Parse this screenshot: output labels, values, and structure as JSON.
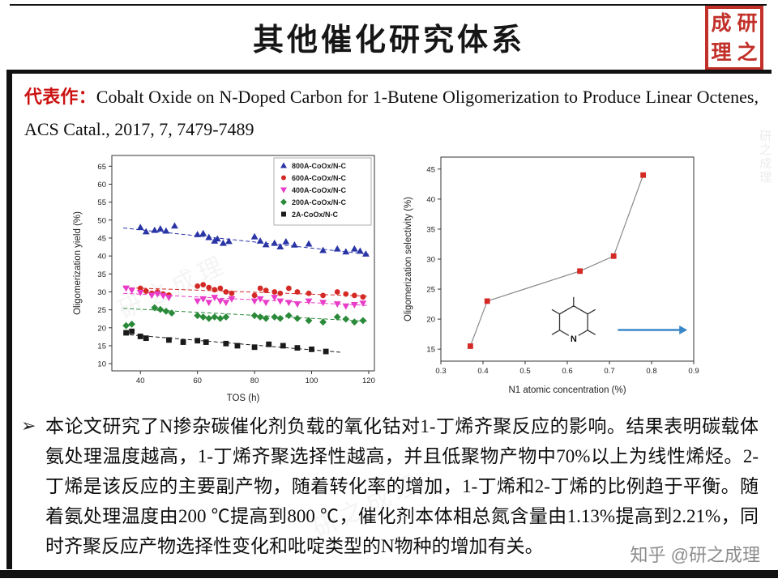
{
  "slide": {
    "title": "其他催化研究体系",
    "seal": {
      "chars": [
        "研",
        "之",
        "成",
        "理"
      ]
    },
    "citation": {
      "label": "代表作：",
      "text": "Cobalt Oxide on N-Doped Carbon for 1-Butene Oligomerization to Produce Linear Octenes, ACS Catal., 2017, 7, 7479-7489"
    },
    "bullet": {
      "marker": "➢",
      "text": "本论文研究了N掺杂碳催化剂负载的氧化钴对1-丁烯齐聚反应的影响。结果表明碳载体氨处理温度越高，1-丁烯齐聚选择性越高，并且低聚物产物中70%以上为线性烯烃。2-丁烯是该反应的主要副产物，随着转化率的增加，1-丁烯和2-丁烯的比例趋于平衡。随着氨处理温度由200 ℃提高到800 ℃，催化剂本体相总氮含量由1.13%提高到2.21%，同时齐聚反应产物选择性变化和吡啶类型的N物种的增加有关。"
    },
    "watermark": "知乎 @研之成理",
    "bg_watermark": "研之成理",
    "colors": {
      "accent_red": "#cc1111",
      "seal_red": "#c2302a",
      "arrow_blue": "#3a87c8"
    }
  },
  "chart_data": [
    {
      "type": "scatter",
      "xlabel": "TOS (h)",
      "ylabel": "Oligomerization yield (%)",
      "xlim": [
        30,
        122
      ],
      "ylim": [
        8,
        68
      ],
      "xticks": [
        40,
        60,
        80,
        100,
        120
      ],
      "yticks": [
        10,
        15,
        20,
        25,
        30,
        35,
        40,
        45,
        50,
        55,
        60,
        65
      ],
      "legend": true,
      "legend_position": "top-right",
      "series": [
        {
          "name": "800A-CoOx/N-C",
          "color": "#2a35a5",
          "marker": "triangle-up",
          "trend": [
            [
              34,
              47.8
            ],
            [
              120,
              40.5
            ]
          ],
          "points": [
            [
              40,
              48
            ],
            [
              42,
              46.8
            ],
            [
              45,
              47.2
            ],
            [
              47,
              47.6
            ],
            [
              49,
              47
            ],
            [
              52,
              48.4
            ],
            [
              60,
              46
            ],
            [
              62,
              46.3
            ],
            [
              64,
              45.2
            ],
            [
              66,
              44.2
            ],
            [
              67,
              44.8
            ],
            [
              69,
              43.6
            ],
            [
              71,
              44.1
            ],
            [
              80,
              45.4
            ],
            [
              82,
              44.2
            ],
            [
              84,
              43.2
            ],
            [
              87,
              43.6
            ],
            [
              89,
              42.6
            ],
            [
              91,
              44
            ],
            [
              94,
              43.1
            ],
            [
              99,
              43.4
            ],
            [
              104,
              41.6
            ],
            [
              109,
              42
            ],
            [
              112,
              41.2
            ],
            [
              115,
              42
            ],
            [
              117,
              41.4
            ],
            [
              119,
              40.6
            ]
          ]
        },
        {
          "name": "600A-CoOx/N-C",
          "color": "#d42a25",
          "marker": "circle",
          "trend": [
            [
              34,
              31.2
            ],
            [
              120,
              28.8
            ]
          ],
          "points": [
            [
              40,
              31
            ],
            [
              42,
              30.2
            ],
            [
              44,
              29.6
            ],
            [
              46,
              30
            ],
            [
              48,
              29.4
            ],
            [
              50,
              29.1
            ],
            [
              60,
              31.6
            ],
            [
              62,
              32
            ],
            [
              64,
              31.2
            ],
            [
              66,
              30.6
            ],
            [
              68,
              31
            ],
            [
              70,
              30
            ],
            [
              72,
              29.6
            ],
            [
              80,
              29
            ],
            [
              82,
              31
            ],
            [
              84,
              30.4
            ],
            [
              87,
              30
            ],
            [
              89,
              29.6
            ],
            [
              92,
              31
            ],
            [
              95,
              30
            ],
            [
              99,
              29.6
            ],
            [
              104,
              29
            ],
            [
              109,
              30
            ],
            [
              112,
              29.4
            ],
            [
              115,
              29
            ],
            [
              118,
              28.6
            ]
          ]
        },
        {
          "name": "400A-CoOx/N-C",
          "color": "#e93cc8",
          "marker": "triangle-down",
          "trend": [
            [
              34,
              29.6
            ],
            [
              120,
              26.2
            ]
          ],
          "points": [
            [
              35,
              31
            ],
            [
              37,
              30.4
            ],
            [
              40,
              29.8
            ],
            [
              44,
              29
            ],
            [
              46,
              29.4
            ],
            [
              48,
              28.9
            ],
            [
              50,
              28.4
            ],
            [
              60,
              27.4
            ],
            [
              62,
              28
            ],
            [
              64,
              27
            ],
            [
              66,
              28.4
            ],
            [
              68,
              27.4
            ],
            [
              70,
              27
            ],
            [
              72,
              28
            ],
            [
              80,
              27.4
            ],
            [
              82,
              28
            ],
            [
              84,
              27
            ],
            [
              87,
              28.4
            ],
            [
              89,
              27.4
            ],
            [
              92,
              27
            ],
            [
              95,
              26.6
            ],
            [
              99,
              27.4
            ],
            [
              104,
              27
            ],
            [
              109,
              26.6
            ],
            [
              112,
              26
            ],
            [
              115,
              26.4
            ],
            [
              118,
              26.8
            ]
          ]
        },
        {
          "name": "200A-CoOx/N-C",
          "color": "#2a8a3a",
          "marker": "diamond",
          "trend": [
            [
              34,
              25.4
            ],
            [
              120,
              21.8
            ]
          ],
          "points": [
            [
              35,
              20.6
            ],
            [
              37,
              21
            ],
            [
              45,
              25.6
            ],
            [
              47,
              25.1
            ],
            [
              49,
              24.6
            ],
            [
              51,
              24.1
            ],
            [
              60,
              23.4
            ],
            [
              62,
              23
            ],
            [
              64,
              22.6
            ],
            [
              66,
              23
            ],
            [
              68,
              22.6
            ],
            [
              70,
              23
            ],
            [
              80,
              23.4
            ],
            [
              82,
              23
            ],
            [
              84,
              22.6
            ],
            [
              87,
              23
            ],
            [
              89,
              22.6
            ],
            [
              92,
              23.4
            ],
            [
              95,
              22.6
            ],
            [
              99,
              22
            ],
            [
              104,
              21.6
            ],
            [
              109,
              23
            ],
            [
              112,
              22.4
            ],
            [
              115,
              21.6
            ],
            [
              118,
              22
            ]
          ]
        },
        {
          "name": "2A-CoOx/N-C",
          "color": "#1a1a1a",
          "marker": "square",
          "trend": [
            [
              34,
              18.2
            ],
            [
              110,
              13.2
            ]
          ],
          "points": [
            [
              35,
              18.6
            ],
            [
              37,
              19
            ],
            [
              40,
              17.6
            ],
            [
              42,
              17.1
            ],
            [
              50,
              16.6
            ],
            [
              55,
              16
            ],
            [
              60,
              16.4
            ],
            [
              63,
              16
            ],
            [
              70,
              15.6
            ],
            [
              74,
              15
            ],
            [
              80,
              14.6
            ],
            [
              85,
              15.4
            ],
            [
              90,
              15
            ],
            [
              95,
              14.4
            ],
            [
              100,
              14
            ],
            [
              105,
              13.4
            ]
          ]
        }
      ]
    },
    {
      "type": "scatter-line",
      "xlabel": "N1 atomic concentration (%)",
      "ylabel": "Oligomerization selectivity (%)",
      "xlim": [
        0.3,
        0.9
      ],
      "ylim": [
        13,
        47
      ],
      "xticks": [
        0.3,
        0.4,
        0.5,
        0.6,
        0.7,
        0.8,
        0.9
      ],
      "yticks": [
        15,
        20,
        25,
        30,
        35,
        40,
        45
      ],
      "legend": false,
      "arrow_color": "#3a87c8",
      "molecule": {
        "label": "N",
        "cx": 0.615,
        "cy": 19.5,
        "arrow": [
          [
            0.72,
            18.2
          ],
          [
            0.885,
            18.2
          ]
        ]
      },
      "series": [
        {
          "name": "selectivity",
          "color": "#d42a25",
          "line_color": "#8a8a8a",
          "marker": "square",
          "points": [
            [
              0.37,
              15.5
            ],
            [
              0.41,
              23
            ],
            [
              0.63,
              28
            ],
            [
              0.71,
              30.5
            ],
            [
              0.78,
              44
            ]
          ]
        }
      ]
    }
  ]
}
